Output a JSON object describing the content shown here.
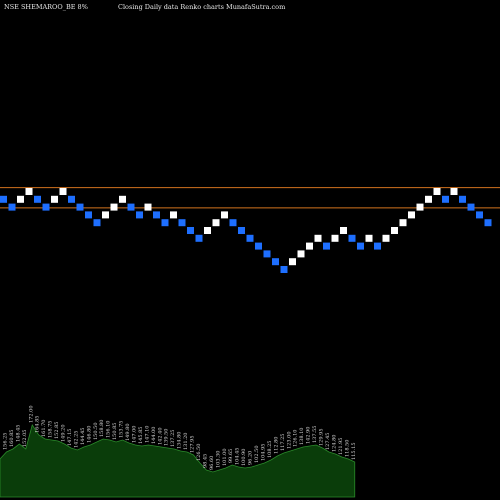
{
  "header": {
    "symbol": "NSE SHEMAROO_BE 8%",
    "subtitle": "Closing Daily data  Renko  charts MunafaSutra.com"
  },
  "chart_data": {
    "type": "renko",
    "title": "NSE SHEMAROO_BE 8%",
    "subtitle": "Closing Daily data  Renko  charts MunafaSutra.com",
    "colors": {
      "background": "#000000",
      "up_brick": "#ffffff",
      "down_brick": "#1e6fff",
      "reference_line": "#d2731e",
      "volume_fill": "#0a3d0a",
      "volume_line": "#2a8a2a"
    },
    "brick_step": 1,
    "bricks": [
      {
        "level": 12,
        "dir": "down"
      },
      {
        "level": 11,
        "dir": "down"
      },
      {
        "level": 12,
        "dir": "up"
      },
      {
        "level": 13,
        "dir": "up"
      },
      {
        "level": 12,
        "dir": "down"
      },
      {
        "level": 11,
        "dir": "down"
      },
      {
        "level": 12,
        "dir": "up"
      },
      {
        "level": 13,
        "dir": "up"
      },
      {
        "level": 12,
        "dir": "down"
      },
      {
        "level": 11,
        "dir": "down"
      },
      {
        "level": 10,
        "dir": "down"
      },
      {
        "level": 9,
        "dir": "down"
      },
      {
        "level": 10,
        "dir": "up"
      },
      {
        "level": 11,
        "dir": "up"
      },
      {
        "level": 12,
        "dir": "up"
      },
      {
        "level": 11,
        "dir": "down"
      },
      {
        "level": 10,
        "dir": "down"
      },
      {
        "level": 11,
        "dir": "up"
      },
      {
        "level": 10,
        "dir": "down"
      },
      {
        "level": 9,
        "dir": "down"
      },
      {
        "level": 10,
        "dir": "up"
      },
      {
        "level": 9,
        "dir": "down"
      },
      {
        "level": 8,
        "dir": "down"
      },
      {
        "level": 7,
        "dir": "down"
      },
      {
        "level": 8,
        "dir": "up"
      },
      {
        "level": 9,
        "dir": "up"
      },
      {
        "level": 10,
        "dir": "up"
      },
      {
        "level": 9,
        "dir": "down"
      },
      {
        "level": 8,
        "dir": "down"
      },
      {
        "level": 7,
        "dir": "down"
      },
      {
        "level": 6,
        "dir": "down"
      },
      {
        "level": 5,
        "dir": "down"
      },
      {
        "level": 4,
        "dir": "down"
      },
      {
        "level": 3,
        "dir": "down"
      },
      {
        "level": 4,
        "dir": "up"
      },
      {
        "level": 5,
        "dir": "up"
      },
      {
        "level": 6,
        "dir": "up"
      },
      {
        "level": 7,
        "dir": "up"
      },
      {
        "level": 6,
        "dir": "down"
      },
      {
        "level": 7,
        "dir": "up"
      },
      {
        "level": 8,
        "dir": "up"
      },
      {
        "level": 7,
        "dir": "down"
      },
      {
        "level": 6,
        "dir": "down"
      },
      {
        "level": 7,
        "dir": "up"
      },
      {
        "level": 6,
        "dir": "down"
      },
      {
        "level": 7,
        "dir": "up"
      },
      {
        "level": 8,
        "dir": "up"
      },
      {
        "level": 9,
        "dir": "up"
      },
      {
        "level": 10,
        "dir": "up"
      },
      {
        "level": 11,
        "dir": "up"
      },
      {
        "level": 12,
        "dir": "up"
      },
      {
        "level": 13,
        "dir": "up"
      },
      {
        "level": 12,
        "dir": "down"
      },
      {
        "level": 13,
        "dir": "up"
      },
      {
        "level": 12,
        "dir": "down"
      },
      {
        "level": 11,
        "dir": "down"
      },
      {
        "level": 10,
        "dir": "down"
      },
      {
        "level": 9,
        "dir": "down"
      }
    ],
    "reference_lines": [
      {
        "level": 13.5
      },
      {
        "level": 10.9
      }
    ],
    "volume_profile": [
      38,
      45,
      48,
      53,
      48,
      72,
      62,
      58,
      57,
      56,
      53,
      49,
      47,
      50,
      52,
      55,
      58,
      57,
      55,
      57,
      54,
      52,
      51,
      52,
      51,
      50,
      49,
      48,
      46,
      45,
      42,
      34,
      27,
      25,
      27,
      29,
      32,
      30,
      29,
      30,
      32,
      34,
      37,
      41,
      44,
      46,
      48,
      50,
      51,
      52,
      49,
      45,
      43,
      40,
      38,
      35
    ],
    "volume_labels": [
      {
        "i": 1,
        "text": "156.25"
      },
      {
        "i": 2,
        "text": "160.85"
      },
      {
        "i": 3,
        "text": "148.45"
      },
      {
        "i": 4,
        "text": "152.05"
      },
      {
        "i": 5,
        "text": "172.00"
      },
      {
        "i": 6,
        "text": "164.85"
      },
      {
        "i": 7,
        "text": "161.70"
      },
      {
        "i": 8,
        "text": "158.75"
      },
      {
        "i": 9,
        "text": "152.85"
      },
      {
        "i": 10,
        "text": "149.20"
      },
      {
        "i": 11,
        "text": "147.15"
      },
      {
        "i": 12,
        "text": "142.25"
      },
      {
        "i": 13,
        "text": "144.45"
      },
      {
        "i": 14,
        "text": "146.80"
      },
      {
        "i": 15,
        "text": "150.50"
      },
      {
        "i": 16,
        "text": "158.80"
      },
      {
        "i": 17,
        "text": "156.10"
      },
      {
        "i": 18,
        "text": "150.85"
      },
      {
        "i": 19,
        "text": "153.75"
      },
      {
        "i": 20,
        "text": "149.80"
      },
      {
        "i": 21,
        "text": "147.00"
      },
      {
        "i": 22,
        "text": "145.85"
      },
      {
        "i": 23,
        "text": "147.10"
      },
      {
        "i": 24,
        "text": "144.00"
      },
      {
        "i": 25,
        "text": "142.40"
      },
      {
        "i": 26,
        "text": "139.50"
      },
      {
        "i": 27,
        "text": "137.25"
      },
      {
        "i": 28,
        "text": "134.80"
      },
      {
        "i": 29,
        "text": "131.20"
      },
      {
        "i": 30,
        "text": "127.95"
      },
      {
        "i": 31,
        "text": "126.50"
      },
      {
        "i": 32,
        "text": "98.45"
      },
      {
        "i": 33,
        "text": "96.60"
      },
      {
        "i": 34,
        "text": "103.30"
      },
      {
        "i": 35,
        "text": "101.00"
      },
      {
        "i": 36,
        "text": "99.65"
      },
      {
        "i": 37,
        "text": "104.45"
      },
      {
        "i": 38,
        "text": "100.90"
      },
      {
        "i": 39,
        "text": "96.20"
      },
      {
        "i": 40,
        "text": "102.50"
      },
      {
        "i": 41,
        "text": "104.95"
      },
      {
        "i": 42,
        "text": "108.25"
      },
      {
        "i": 43,
        "text": "112.80"
      },
      {
        "i": 44,
        "text": "117.25"
      },
      {
        "i": 45,
        "text": "123.00"
      },
      {
        "i": 46,
        "text": "126.10"
      },
      {
        "i": 47,
        "text": "138.10"
      },
      {
        "i": 48,
        "text": "142.90"
      },
      {
        "i": 49,
        "text": "137.55"
      },
      {
        "i": 50,
        "text": "129.95"
      },
      {
        "i": 51,
        "text": "127.45"
      },
      {
        "i": 52,
        "text": "124.80"
      },
      {
        "i": 53,
        "text": "121.95"
      },
      {
        "i": 54,
        "text": "118.50"
      },
      {
        "i": 55,
        "text": "115.15"
      }
    ]
  }
}
